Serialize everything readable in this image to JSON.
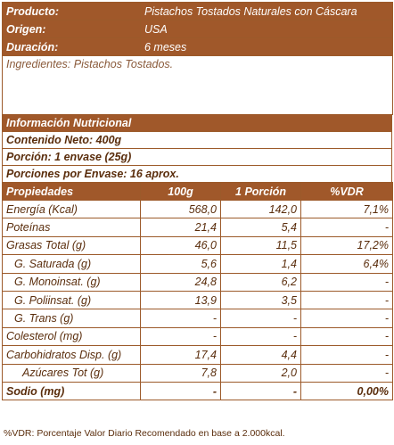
{
  "product_info": [
    {
      "label": "Producto:",
      "value": "Pistachos Tostados Naturales con Cáscara"
    },
    {
      "label": "Origen:",
      "value": "USA"
    },
    {
      "label": "Duración:",
      "value": "6 meses"
    }
  ],
  "ingredients": "Ingredientes: Pistachos Tostados.",
  "nutrition": {
    "title": "Información Nutricional",
    "net_content": "Contenido Neto: 400g",
    "serving": "Porción: 1 envase (25g)",
    "servings_per_pack": "Porciones por Envase: 16 aprox."
  },
  "table": {
    "headers": [
      "Propiedades",
      "100g",
      "1 Porción",
      "%VDR"
    ],
    "rows": [
      {
        "name": "Energía (Kcal)",
        "g100": "568,0",
        "portion": "142,0",
        "vdr": "7,1%"
      },
      {
        "name": "Poteínas",
        "g100": "21,4",
        "portion": "5,4",
        "vdr": "-"
      },
      {
        "name": "Grasas Total (g)",
        "g100": "46,0",
        "portion": "11,5",
        "vdr": "17,2%"
      },
      {
        "name": "G. Saturada (g)",
        "g100": "5,6",
        "portion": "1,4",
        "vdr": "6,4%"
      },
      {
        "name": "G. Monoinsat. (g)",
        "g100": "24,8",
        "portion": "6,2",
        "vdr": "-"
      },
      {
        "name": "G. Poliinsat. (g)",
        "g100": "13,9",
        "portion": "3,5",
        "vdr": "-"
      },
      {
        "name": "G. Trans (g)",
        "g100": "-",
        "portion": "-",
        "vdr": "-"
      },
      {
        "name": "Colesterol (mg)",
        "g100": "-",
        "portion": "-",
        "vdr": "-"
      },
      {
        "name": "Carbohidratos Disp. (g)",
        "g100": "17,4",
        "portion": "4,4",
        "vdr": "-"
      },
      {
        "name": "Azúcares Tot (g)",
        "g100": "7,8",
        "portion": "2,0",
        "vdr": "-"
      },
      {
        "name": "Sodio (mg)",
        "g100": "-",
        "portion": "-",
        "vdr": "0,00%"
      }
    ]
  },
  "footnote": "%VDR: Porcentaje Valor Diario Recomendado en base a 2.000kcal."
}
